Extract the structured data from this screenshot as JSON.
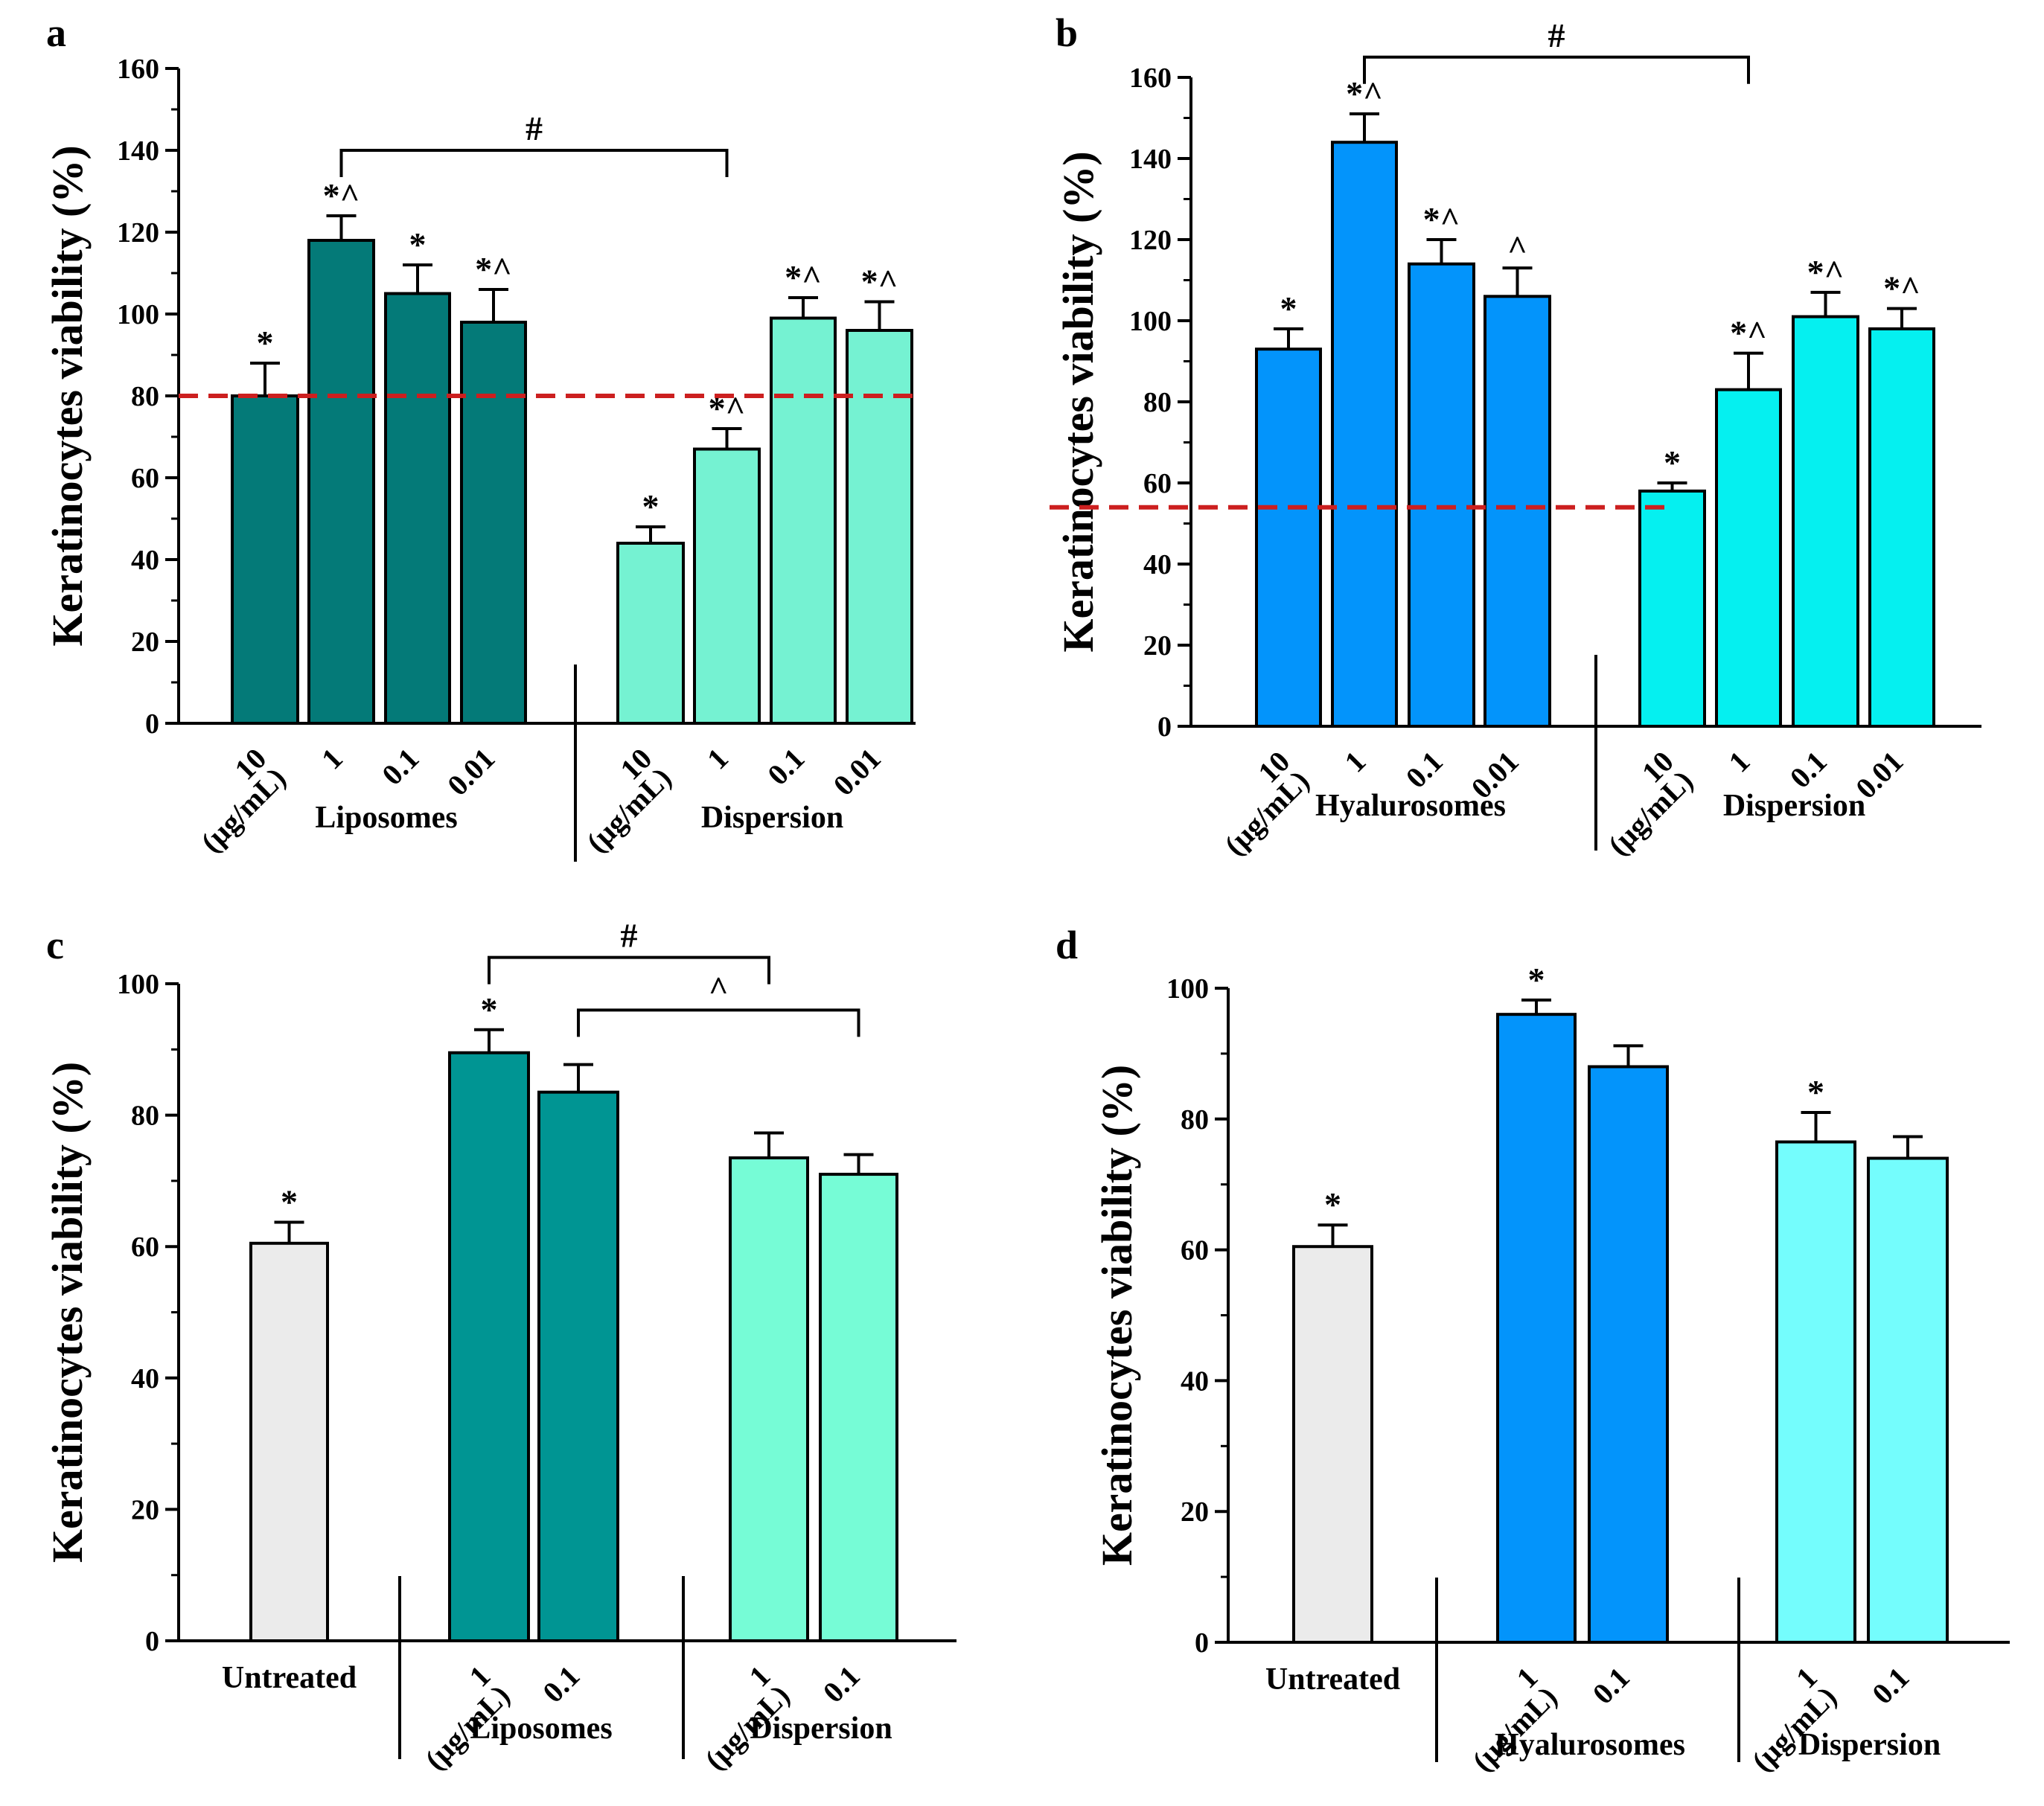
{
  "y_axis_label": "Keratinocytes viability (%)",
  "chart_data": [
    {
      "type": "bar",
      "panel": "a",
      "ylabel": "Keratinocytes viability (%)",
      "ylim": [
        0,
        160
      ],
      "yticks": [
        0,
        20,
        40,
        60,
        80,
        100,
        120,
        140,
        160
      ],
      "groups": [
        {
          "name": "Liposomes",
          "color": "#047a78",
          "bars": [
            {
              "label": "10",
              "label2": "(µg/mL)",
              "value": 80,
              "error": 8,
              "mark": "*"
            },
            {
              "label": "1",
              "value": 118,
              "error": 6,
              "mark": "*^"
            },
            {
              "label": "0.1",
              "value": 105,
              "error": 7,
              "mark": "*"
            },
            {
              "label": "0.01",
              "value": 98,
              "error": 8,
              "mark": "*^"
            }
          ]
        },
        {
          "name": "Dispersion",
          "color": "#75f2d2",
          "bars": [
            {
              "label": "10",
              "label2": "(µg/mL)",
              "value": 44,
              "error": 4,
              "mark": "*"
            },
            {
              "label": "1",
              "value": 67,
              "error": 5,
              "mark": "*^"
            },
            {
              "label": "0.1",
              "value": 99,
              "error": 5,
              "mark": "*^"
            },
            {
              "label": "0.01",
              "value": 96,
              "error": 7,
              "mark": "*^"
            }
          ]
        }
      ],
      "reference_line": 80,
      "brackets": [
        {
          "from": [
            0,
            1
          ],
          "to": [
            1,
            1
          ],
          "label": "#",
          "at": 140
        }
      ]
    },
    {
      "type": "bar",
      "panel": "b",
      "ylabel": "Keratinocytes viability (%)",
      "ylim": [
        0,
        160
      ],
      "yticks": [
        0,
        20,
        40,
        60,
        80,
        100,
        120,
        140,
        160
      ],
      "groups": [
        {
          "name": "Hyalurosomes",
          "color": "#0394fb",
          "bars": [
            {
              "label": "10",
              "label2": "(µg/mL)",
              "value": 93,
              "error": 5,
              "mark": "*"
            },
            {
              "label": "1",
              "value": 144,
              "error": 7,
              "mark": "*^"
            },
            {
              "label": "0.1",
              "value": 114,
              "error": 6,
              "mark": "*^"
            },
            {
              "label": "0.01",
              "value": 106,
              "error": 7,
              "mark": "^"
            }
          ]
        },
        {
          "name": "Dispersion",
          "color": "#05f0f0",
          "bars": [
            {
              "label": "10",
              "label2": "(µg/mL)",
              "value": 58,
              "error": 2,
              "mark": "*"
            },
            {
              "label": "1",
              "value": 83,
              "error": 9,
              "mark": "*^"
            },
            {
              "label": "0.1",
              "value": 101,
              "error": 6,
              "mark": "*^"
            },
            {
              "label": "0.01",
              "value": 98,
              "error": 5,
              "mark": "*^"
            }
          ]
        }
      ],
      "reference_line": 54,
      "brackets": [
        {
          "from": [
            0,
            1
          ],
          "to": [
            1,
            1
          ],
          "label": "#",
          "at": 165
        }
      ]
    },
    {
      "type": "bar",
      "panel": "c",
      "ylabel": "Keratinocytes viability (%)",
      "ylim": [
        0,
        100
      ],
      "yticks": [
        0,
        20,
        40,
        60,
        80,
        100
      ],
      "groups": [
        {
          "name": "Untreated",
          "color": "#ebebeb",
          "name_below_axis": true,
          "bars": [
            {
              "label": "",
              "value": 60.5,
              "error": 3.2,
              "mark": "*"
            }
          ]
        },
        {
          "name": "Liposomes",
          "color": "#009593",
          "bars": [
            {
              "label": "1",
              "label2": "(µg/mL)",
              "value": 89.5,
              "error": 3.5,
              "mark": "*"
            },
            {
              "label": "0.1",
              "value": 83.5,
              "error": 4.2,
              "mark": ""
            }
          ]
        },
        {
          "name": "Dispersion",
          "color": "#76fcd6",
          "bars": [
            {
              "label": "1",
              "label2": "(µg/mL)",
              "value": 73.5,
              "error": 3.8,
              "mark": ""
            },
            {
              "label": "0.1",
              "value": 71,
              "error": 3,
              "mark": ""
            }
          ]
        }
      ],
      "brackets": [
        {
          "from": [
            1,
            0
          ],
          "to": [
            2,
            0
          ],
          "label": "#",
          "at": 104
        },
        {
          "from": [
            1,
            1
          ],
          "to": [
            2,
            1
          ],
          "label": "^",
          "at": 96
        }
      ]
    },
    {
      "type": "bar",
      "panel": "d",
      "ylabel": "Keratinocytes viability (%)",
      "ylim": [
        0,
        100
      ],
      "yticks": [
        0,
        20,
        40,
        60,
        80,
        100
      ],
      "groups": [
        {
          "name": "Untreated",
          "color": "#ebebeb",
          "name_below_axis": true,
          "bars": [
            {
              "label": "",
              "value": 60.5,
              "error": 3.3,
              "mark": "*"
            }
          ]
        },
        {
          "name": "Hyalurosomes",
          "color": "#0394fb",
          "bars": [
            {
              "label": "1",
              "label2": "(µg/mL)",
              "value": 96,
              "error": 2.2,
              "mark": "*"
            },
            {
              "label": "0.1",
              "value": 88,
              "error": 3.2,
              "mark": ""
            }
          ]
        },
        {
          "name": "Dispersion",
          "color": "#74fdfd",
          "bars": [
            {
              "label": "1",
              "label2": "(µg/mL)",
              "value": 76.5,
              "error": 4.5,
              "mark": "*"
            },
            {
              "label": "0.1",
              "value": 74,
              "error": 3.3,
              "mark": ""
            }
          ]
        }
      ],
      "brackets": []
    }
  ]
}
